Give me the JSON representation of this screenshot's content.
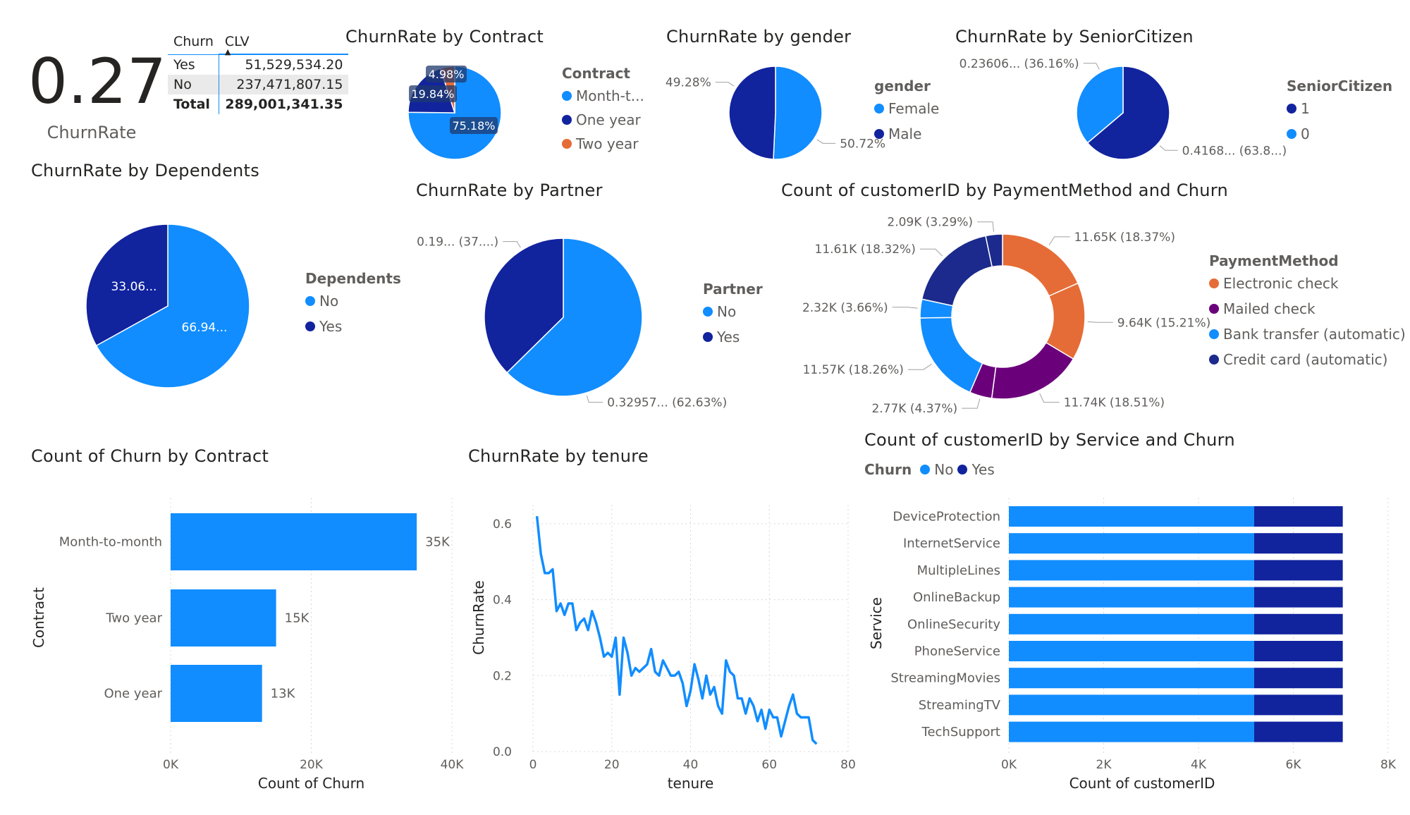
{
  "kpi": {
    "value": "0.27",
    "label": "ChurnRate"
  },
  "matrix": {
    "headers": [
      "Churn",
      "CLV"
    ],
    "rows": [
      {
        "label": "Yes",
        "value": "51,529,534.20"
      },
      {
        "label": "No",
        "value": "237,471,807.15"
      }
    ],
    "total": {
      "label": "Total",
      "value": "289,001,341.35"
    }
  },
  "titles": {
    "contract_pie": "ChurnRate by Contract",
    "gender_pie": "ChurnRate by gender",
    "senior_pie": "ChurnRate by SeniorCitizen",
    "dependents_pie": "ChurnRate by Dependents",
    "partner_pie": "ChurnRate by Partner",
    "payment_donut": "Count of customerID by PaymentMethod and Churn",
    "contract_bar": "Count of Churn by Contract",
    "tenure_line": "ChurnRate by tenure",
    "service_bar": "Count of customerID by Service and Churn"
  },
  "colors": {
    "light_blue": "#118DFF",
    "dark_blue": "#12239E",
    "orange": "#E66C37",
    "purple": "#6B007B",
    "navy": "#1B2A8C"
  },
  "chart_data": [
    {
      "id": "contract_pie",
      "type": "pie",
      "legend_title": "Contract",
      "legend": [
        "Month-t...",
        "One year",
        "Two year"
      ],
      "slices": [
        {
          "name": "Month-to-month",
          "value": 75.18,
          "label": "75.18%"
        },
        {
          "name": "One year",
          "value": 19.84,
          "label": "19.84%"
        },
        {
          "name": "Two year",
          "value": 4.98,
          "label": "4.98%"
        }
      ]
    },
    {
      "id": "gender_pie",
      "type": "pie",
      "legend_title": "gender",
      "legend": [
        "Female",
        "Male"
      ],
      "slices": [
        {
          "name": "Female",
          "value": 50.72,
          "label": "50.72%"
        },
        {
          "name": "Male",
          "value": 49.28,
          "label": "49.28%"
        }
      ]
    },
    {
      "id": "senior_pie",
      "type": "pie",
      "legend_title": "SeniorCitizen",
      "legend": [
        "1",
        "0"
      ],
      "slices": [
        {
          "name": "1",
          "value": 63.8,
          "label": "0.4168... (63.8...)"
        },
        {
          "name": "0",
          "value": 36.16,
          "label": "0.23606... (36.16%)"
        }
      ]
    },
    {
      "id": "dependents_pie",
      "type": "pie",
      "legend_title": "Dependents",
      "legend": [
        "No",
        "Yes"
      ],
      "slices": [
        {
          "name": "No",
          "value": 66.94,
          "label": "66.94..."
        },
        {
          "name": "Yes",
          "value": 33.06,
          "label": "33.06..."
        }
      ]
    },
    {
      "id": "partner_pie",
      "type": "pie",
      "legend_title": "Partner",
      "legend": [
        "No",
        "Yes"
      ],
      "slices": [
        {
          "name": "No",
          "value": 62.63,
          "label": "0.32957... (62.63%)"
        },
        {
          "name": "Yes",
          "value": 37.37,
          "label": "0.19... (37....)"
        }
      ]
    },
    {
      "id": "payment_donut",
      "type": "pie",
      "legend_title": "PaymentMethod",
      "legend": [
        "Electronic check",
        "Mailed check",
        "Bank transfer (automatic)",
        "Credit card (automatic)"
      ],
      "slices": [
        {
          "name": "Electronic check",
          "churn": "No",
          "value": 18.37,
          "label": "11.65K (18.37%)"
        },
        {
          "name": "Electronic check",
          "churn": "Yes",
          "value": 15.21,
          "label": "9.64K (15.21%)"
        },
        {
          "name": "Mailed check",
          "churn": "No",
          "value": 18.51,
          "label": "11.74K (18.51%)"
        },
        {
          "name": "Mailed check",
          "churn": "Yes",
          "value": 4.37,
          "label": "2.77K (4.37%)"
        },
        {
          "name": "Bank transfer (automatic)",
          "churn": "No",
          "value": 18.26,
          "label": "11.57K (18.26%)"
        },
        {
          "name": "Bank transfer (automatic)",
          "churn": "Yes",
          "value": 3.66,
          "label": "2.32K (3.66%)"
        },
        {
          "name": "Credit card (automatic)",
          "churn": "No",
          "value": 18.32,
          "label": "11.61K (18.32%)"
        },
        {
          "name": "Credit card (automatic)",
          "churn": "Yes",
          "value": 3.29,
          "label": "2.09K (3.29%)"
        }
      ]
    },
    {
      "id": "contract_bar",
      "type": "bar",
      "categories": [
        "Month-to-month",
        "Two year",
        "One year"
      ],
      "values": [
        35000,
        15000,
        13000
      ],
      "value_labels": [
        "35K",
        "15K",
        "13K"
      ],
      "xlabel": "Count of Churn",
      "ylabel": "Contract",
      "xlim": [
        0,
        40000
      ],
      "x_ticks": [
        0,
        20000,
        40000
      ],
      "x_tick_labels": [
        "0K",
        "20K",
        "40K"
      ]
    },
    {
      "id": "tenure_line",
      "type": "line",
      "xlabel": "tenure",
      "ylabel": "ChurnRate",
      "xlim": [
        0,
        80
      ],
      "ylim": [
        0,
        0.65
      ],
      "x_ticks": [
        0,
        20,
        40,
        60,
        80
      ],
      "y_ticks": [
        0.0,
        0.2,
        0.4,
        0.6
      ],
      "y_tick_labels": [
        "0.0",
        "0.2",
        "0.4",
        "0.6"
      ],
      "x": [
        1,
        2,
        3,
        4,
        5,
        6,
        7,
        8,
        9,
        10,
        11,
        12,
        13,
        14,
        15,
        16,
        17,
        18,
        19,
        20,
        21,
        22,
        23,
        24,
        25,
        26,
        27,
        28,
        29,
        30,
        31,
        32,
        33,
        34,
        35,
        36,
        37,
        38,
        39,
        40,
        41,
        42,
        43,
        44,
        45,
        46,
        47,
        48,
        49,
        50,
        51,
        52,
        53,
        54,
        55,
        56,
        57,
        58,
        59,
        60,
        61,
        62,
        63,
        64,
        65,
        66,
        67,
        68,
        69,
        70,
        71,
        72
      ],
      "y": [
        0.62,
        0.52,
        0.47,
        0.47,
        0.48,
        0.37,
        0.39,
        0.36,
        0.39,
        0.39,
        0.32,
        0.34,
        0.35,
        0.32,
        0.37,
        0.34,
        0.3,
        0.25,
        0.26,
        0.25,
        0.3,
        0.15,
        0.3,
        0.26,
        0.2,
        0.22,
        0.21,
        0.22,
        0.23,
        0.27,
        0.21,
        0.2,
        0.24,
        0.22,
        0.2,
        0.2,
        0.21,
        0.18,
        0.12,
        0.16,
        0.23,
        0.19,
        0.14,
        0.2,
        0.15,
        0.17,
        0.12,
        0.1,
        0.24,
        0.21,
        0.2,
        0.14,
        0.14,
        0.1,
        0.14,
        0.12,
        0.08,
        0.11,
        0.06,
        0.11,
        0.09,
        0.09,
        0.04,
        0.08,
        0.12,
        0.15,
        0.1,
        0.09,
        0.09,
        0.09,
        0.03,
        0.02
      ]
    },
    {
      "id": "service_bar",
      "type": "bar",
      "stacked": true,
      "legend_title": "Churn",
      "legend": [
        "No",
        "Yes"
      ],
      "categories": [
        "DeviceProtection",
        "InternetService",
        "MultipleLines",
        "OnlineBackup",
        "OnlineSecurity",
        "PhoneService",
        "StreamingMovies",
        "StreamingTV",
        "TechSupport"
      ],
      "series": [
        {
          "name": "No",
          "values": [
            5174,
            5174,
            5174,
            5174,
            5174,
            5174,
            5174,
            5174,
            5174
          ]
        },
        {
          "name": "Yes",
          "values": [
            1869,
            1869,
            1869,
            1869,
            1869,
            1869,
            1869,
            1869,
            1869
          ]
        }
      ],
      "xlabel": "Count of customerID",
      "ylabel": "Service",
      "xlim": [
        0,
        8000
      ],
      "x_ticks": [
        0,
        2000,
        4000,
        6000,
        8000
      ],
      "x_tick_labels": [
        "0K",
        "2K",
        "4K",
        "6K",
        "8K"
      ]
    }
  ]
}
